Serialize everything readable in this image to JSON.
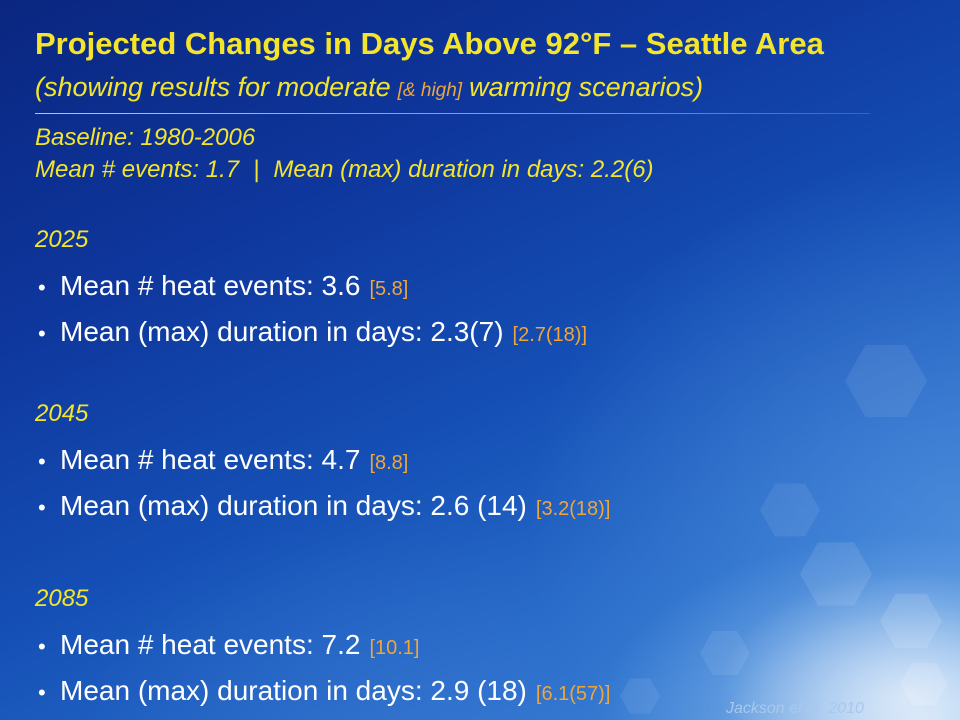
{
  "slide": {
    "title": "Projected Changes in Days Above 92°F – Seattle Area",
    "subtitle": {
      "before": "(showing results for moderate",
      "high": "[& high]",
      "after": "warming scenarios)"
    },
    "baseline": {
      "label": "Baseline: 1980-2006",
      "events": "Mean # events: 1.7",
      "separator": "|",
      "duration": "Mean (max) duration in days: 2.2(6)"
    },
    "bullet_glyph": "•",
    "periods": [
      {
        "year": "2025",
        "items": [
          {
            "text": "Mean # heat events: 3.6",
            "high": "[5.8]"
          },
          {
            "text": "Mean (max) duration in days: 2.3(7)",
            "high": "[2.7(18)]"
          }
        ]
      },
      {
        "year": "2045",
        "items": [
          {
            "text": "Mean # heat events: 4.7",
            "high": "[8.8]"
          },
          {
            "text": "Mean (max) duration in days: 2.6 (14)",
            "high": "[3.2(18)]"
          }
        ]
      },
      {
        "year": "2085",
        "items": [
          {
            "text": "Mean # heat events: 7.2",
            "high": "[10.1]"
          },
          {
            "text": "Mean (max) duration in days: 2.9 (18)",
            "high": "[6.1(57)]"
          }
        ]
      }
    ],
    "citation": "Jackson et al. 2010"
  },
  "colors": {
    "heading": "#f4e52c",
    "scenario_high": "#eea53a",
    "body_text": "#ffffff",
    "citation": "#a8c8ec"
  }
}
